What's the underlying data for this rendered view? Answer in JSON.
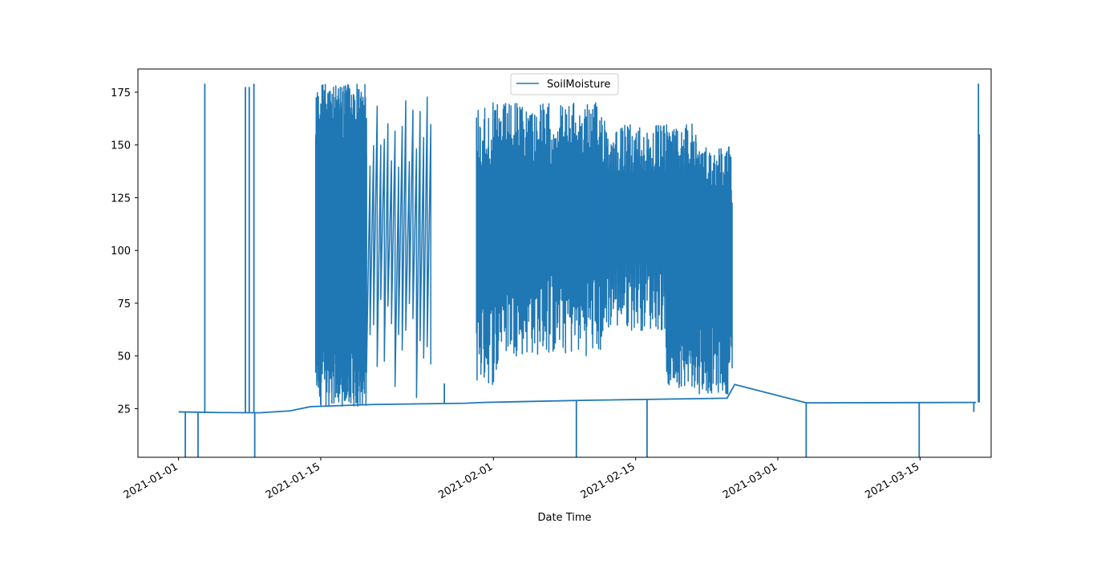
{
  "chart_data": {
    "type": "line",
    "title": "",
    "xlabel": "Date Time",
    "ylabel": "",
    "x_type": "datetime",
    "xlim": [
      "2020-12-28T00:00",
      "2021-03-22T00:00"
    ],
    "ylim": [
      2,
      186
    ],
    "x_ticks": [
      "2021-01-01",
      "2021-01-15",
      "2021-02-01",
      "2021-02-15",
      "2021-03-01",
      "2021-03-15"
    ],
    "x_tick_labels": [
      "2021-01-01",
      "2021-01-15",
      "2021-02-01",
      "2021-02-15",
      "2021-03-01",
      "2021-03-15"
    ],
    "y_ticks": [
      25,
      50,
      75,
      100,
      125,
      150,
      175
    ],
    "y_tick_labels": [
      "25",
      "50",
      "75",
      "100",
      "125",
      "150",
      "175"
    ],
    "grid": false,
    "legend": {
      "position": "top-center",
      "entries": [
        "SoilMoisture"
      ]
    },
    "series": [
      {
        "name": "SoilMoisture",
        "color": "#1f77b4",
        "baseline": [
          [
            "2021-01-01T00:00",
            23.5
          ],
          [
            "2021-01-05T00:00",
            23.2
          ],
          [
            "2021-01-09T00:00",
            23.1
          ],
          [
            "2021-01-12T00:00",
            24.0
          ],
          [
            "2021-01-14T00:00",
            26.0
          ],
          [
            "2021-01-20T00:00",
            27.0
          ],
          [
            "2021-01-29T06:00",
            27.6
          ],
          [
            "2021-01-31T00:00",
            28.0
          ],
          [
            "2021-02-10T00:00",
            29.0
          ],
          [
            "2021-02-24T00:00",
            30.0
          ],
          [
            "2021-02-24T18:00",
            36.5
          ],
          [
            "2021-03-03T19:00",
            27.8
          ],
          [
            "2021-03-20T12:00",
            28.0
          ]
        ],
        "events": [
          [
            "2021-01-01T16:00",
            2
          ],
          [
            "2021-01-02T22:00",
            2
          ],
          [
            "2021-01-03T14:00",
            179
          ],
          [
            "2021-01-07T14:00",
            177.5
          ],
          [
            "2021-01-07T23:00",
            177.5
          ],
          [
            "2021-01-08T10:00",
            179
          ],
          [
            "2021-01-08T12:00",
            2
          ],
          [
            "2021-01-27T04:00",
            37
          ],
          [
            "2021-02-09T04:00",
            2
          ],
          [
            "2021-02-16T03:00",
            2
          ],
          [
            "2021-03-03T19:00",
            2
          ],
          [
            "2021-03-14T22:00",
            2
          ],
          [
            "2021-03-20T07:00",
            23.5
          ],
          [
            "2021-03-20T18:00",
            179
          ],
          [
            "2021-03-20T20:00",
            155
          ]
        ],
        "bands": [
          {
            "start": "2021-01-14T12:00",
            "end": "2021-01-19T12:00",
            "low": 26.0,
            "high": 179,
            "density": 300
          },
          {
            "start": "2021-01-19T12:00",
            "end": "2021-01-25T20:00",
            "low": 27.0,
            "high": 176,
            "density": 18
          },
          {
            "start": "2021-01-30T08:00",
            "end": "2021-02-01T12:00",
            "low": 36,
            "high": 170,
            "density": 40
          },
          {
            "start": "2021-02-01T12:00",
            "end": "2021-02-12T00:00",
            "low": 50,
            "high": 170,
            "density": 180
          },
          {
            "start": "2021-02-12T00:00",
            "end": "2021-02-18T00:00",
            "low": 62,
            "high": 160,
            "density": 90
          },
          {
            "start": "2021-02-18T00:00",
            "end": "2021-02-21T00:00",
            "low": 35,
            "high": 160,
            "density": 120
          },
          {
            "start": "2021-02-21T00:00",
            "end": "2021-02-24T12:00",
            "low": 32,
            "high": 150,
            "density": 90
          }
        ]
      }
    ]
  }
}
